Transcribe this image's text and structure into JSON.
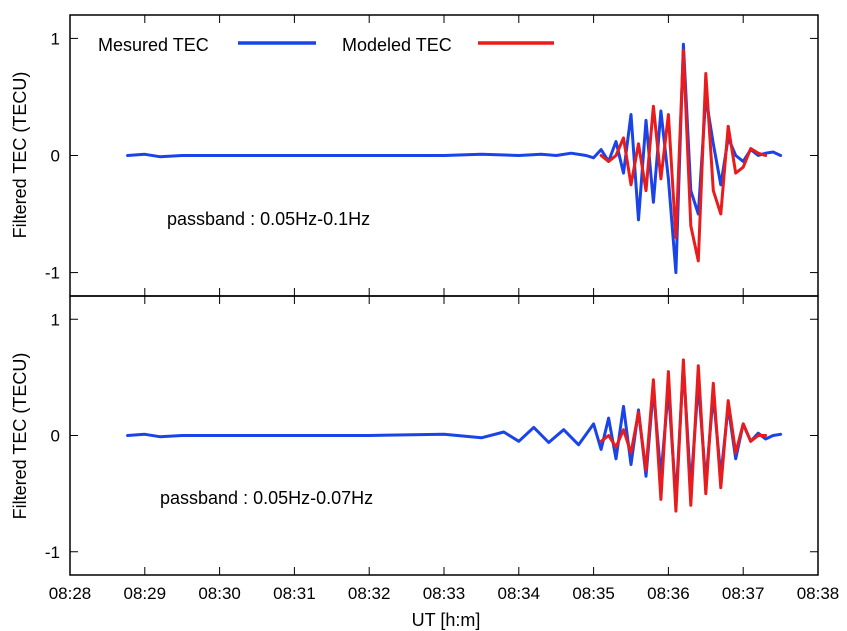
{
  "figure": {
    "xlabel": "UT [h:m]",
    "x_tick_labels": [
      "08:28",
      "08:29",
      "08:30",
      "08:31",
      "08:32",
      "08:33",
      "08:34",
      "08:35",
      "08:36",
      "08:37",
      "08:38"
    ]
  },
  "legend": {
    "measured_label": "Mesured TEC",
    "modeled_label": "Modeled TEC",
    "measured_color": "#1a44e8",
    "modeled_color": "#e81c1c"
  },
  "chart_data": [
    {
      "type": "line",
      "ylabel": "Filtered TEC (TECU)",
      "annotation": "passband : 0.05Hz-0.1Hz",
      "xlim": [
        0,
        10
      ],
      "ylim": [
        -1.2,
        1.2
      ],
      "y_ticks": [
        -1,
        0,
        1
      ],
      "y_tick_labels": [
        "-1",
        "0",
        "1"
      ],
      "grid": false,
      "series": [
        {
          "name": "Mesured TEC",
          "color": "#1a44e8",
          "x": [
            0.77,
            1.0,
            1.2,
            1.5,
            2.0,
            3.0,
            4.0,
            5.0,
            5.5,
            6.0,
            6.3,
            6.5,
            6.7,
            6.9,
            7.0,
            7.1,
            7.2,
            7.3,
            7.4,
            7.5,
            7.6,
            7.7,
            7.8,
            7.9,
            8.0,
            8.1,
            8.2,
            8.3,
            8.4,
            8.5,
            8.6,
            8.7,
            8.8,
            8.9,
            9.0,
            9.1,
            9.2,
            9.3,
            9.4,
            9.5
          ],
          "y": [
            0.0,
            0.01,
            -0.01,
            0.0,
            0.0,
            0.0,
            0.0,
            0.0,
            0.01,
            0.0,
            0.01,
            0.0,
            0.02,
            0.0,
            -0.02,
            0.05,
            -0.05,
            0.12,
            -0.15,
            0.35,
            -0.55,
            0.3,
            -0.4,
            0.38,
            -0.2,
            -1.0,
            0.95,
            -0.3,
            -0.5,
            0.5,
            0.1,
            -0.25,
            0.15,
            0.0,
            -0.05,
            0.05,
            0.0,
            0.02,
            0.03,
            0.0
          ]
        },
        {
          "name": "Modeled TEC",
          "color": "#e81c1c",
          "x": [
            7.1,
            7.2,
            7.3,
            7.4,
            7.5,
            7.6,
            7.7,
            7.8,
            7.9,
            8.0,
            8.1,
            8.2,
            8.3,
            8.4,
            8.5,
            8.6,
            8.7,
            8.8,
            8.9,
            9.0,
            9.1,
            9.2,
            9.3
          ],
          "y": [
            0.0,
            -0.05,
            0.0,
            0.15,
            -0.25,
            0.1,
            -0.3,
            0.42,
            -0.2,
            0.35,
            -0.7,
            0.9,
            -0.6,
            -0.9,
            0.7,
            -0.3,
            -0.5,
            0.25,
            -0.15,
            -0.1,
            0.06,
            0.02,
            0.0
          ]
        }
      ]
    },
    {
      "type": "line",
      "ylabel": "Filtered TEC (TECU)",
      "annotation": "passband : 0.05Hz-0.07Hz",
      "xlim": [
        0,
        10
      ],
      "ylim": [
        -1.2,
        1.2
      ],
      "y_ticks": [
        -1,
        0,
        1
      ],
      "y_tick_labels": [
        "-1",
        "0",
        "1"
      ],
      "grid": false,
      "series": [
        {
          "name": "Mesured TEC",
          "color": "#1a44e8",
          "x": [
            0.77,
            1.0,
            1.2,
            1.5,
            2.0,
            3.0,
            4.0,
            5.0,
            5.5,
            5.8,
            6.0,
            6.2,
            6.4,
            6.6,
            6.8,
            7.0,
            7.1,
            7.2,
            7.3,
            7.4,
            7.5,
            7.6,
            7.7,
            7.8,
            7.9,
            8.0,
            8.1,
            8.2,
            8.3,
            8.4,
            8.5,
            8.6,
            8.7,
            8.8,
            8.9,
            9.0,
            9.1,
            9.2,
            9.3,
            9.4,
            9.5
          ],
          "y": [
            0.0,
            0.01,
            -0.01,
            0.0,
            0.0,
            0.0,
            0.0,
            0.01,
            -0.02,
            0.03,
            -0.05,
            0.07,
            -0.06,
            0.05,
            -0.08,
            0.1,
            -0.12,
            0.15,
            -0.2,
            0.25,
            -0.25,
            0.22,
            -0.35,
            0.4,
            -0.35,
            0.4,
            -0.55,
            0.6,
            -0.45,
            0.45,
            -0.4,
            0.35,
            -0.35,
            0.25,
            -0.2,
            0.1,
            -0.05,
            0.02,
            -0.03,
            0.0,
            0.01
          ]
        },
        {
          "name": "Modeled TEC",
          "color": "#e81c1c",
          "x": [
            7.1,
            7.2,
            7.3,
            7.4,
            7.5,
            7.6,
            7.7,
            7.8,
            7.9,
            8.0,
            8.1,
            8.2,
            8.3,
            8.4,
            8.5,
            8.6,
            8.7,
            8.8,
            8.9,
            9.0,
            9.1,
            9.2,
            9.3
          ],
          "y": [
            -0.05,
            0.0,
            -0.1,
            0.05,
            -0.15,
            0.2,
            -0.3,
            0.48,
            -0.55,
            0.55,
            -0.65,
            0.65,
            -0.6,
            0.6,
            -0.5,
            0.45,
            -0.45,
            0.3,
            -0.15,
            0.1,
            -0.05,
            0.0,
            0.0
          ]
        }
      ]
    }
  ]
}
